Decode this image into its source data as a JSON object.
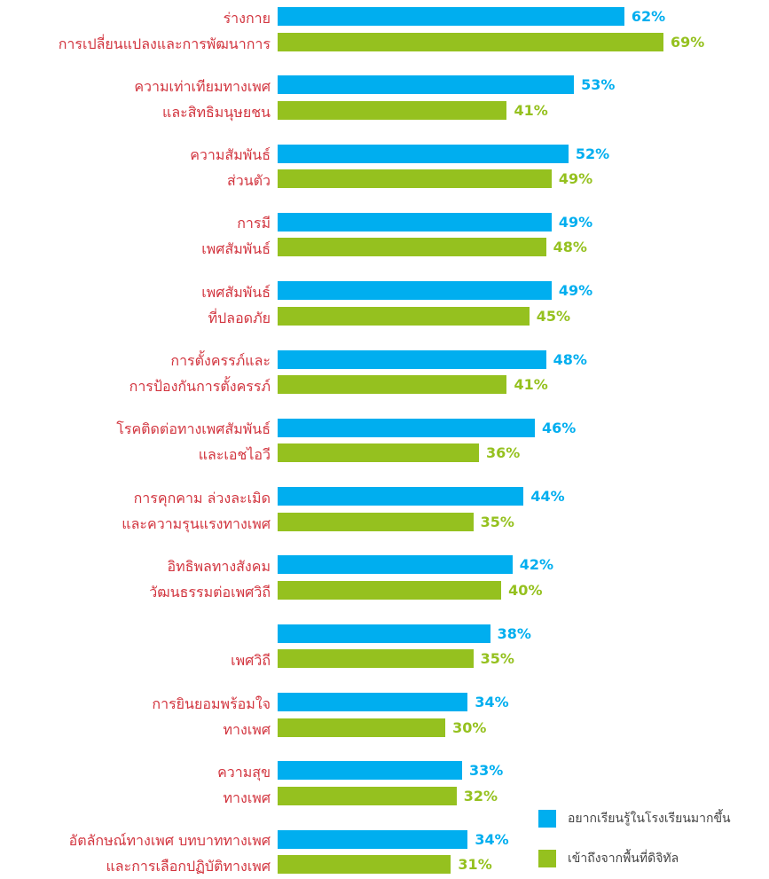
{
  "chart_data": {
    "type": "bar",
    "orientation": "horizontal",
    "categories": [
      "ร่างกาย\nการเปลี่ยนแปลงและการพัฒนาการ",
      "ความเท่าเทียมทางเพศ\nและสิทธิมนุษยชน",
      "ความสัมพันธ์\nส่วนตัว",
      "การมี\nเพศสัมพันธ์",
      "เพศสัมพันธ์\nที่ปลอดภัย",
      "การตั้งครรภ์และ\nการป้องกันการตั้งครรภ์",
      "โรคติดต่อทางเพศสัมพันธ์\nและเอชไอวี",
      "การคุกคาม ล่วงละเมิด\nและความรุนแรงทางเพศ",
      "อิทธิพลทางสังคม\nวัฒนธรรมต่อเพศวิถี",
      "เพศวิถี",
      "การยินยอมพร้อมใจ\nทางเพศ",
      "ความสุข\nทางเพศ",
      "อัตลักษณ์ทางเพศ บทบาททางเพศ\nและการเลือกปฏิบัติทางเพศ"
    ],
    "series": [
      {
        "name": "อยากเรียนรู้ในโรงเรียนมากขึ้น",
        "color": "#00aeef",
        "values": [
          62,
          53,
          52,
          49,
          49,
          48,
          46,
          44,
          42,
          38,
          34,
          33,
          34
        ],
        "value_labels": [
          "62%",
          "53%",
          "52%",
          "49%",
          "49%",
          "48%",
          "46%",
          "44%",
          "42%",
          "38%",
          "34%",
          "33%",
          "34%"
        ]
      },
      {
        "name": "เข้าถึงจากพื้นที่ดิจิทัล",
        "color": "#95c11f",
        "values": [
          69,
          41,
          49,
          48,
          45,
          41,
          36,
          35,
          40,
          35,
          30,
          32,
          31
        ],
        "value_labels": [
          "69%",
          "41%",
          "49%",
          "48%",
          "45%",
          "41%",
          "36%",
          "35%",
          "40%",
          "35%",
          "30%",
          "32%",
          "31%"
        ]
      }
    ],
    "legend": "lower right"
  }
}
